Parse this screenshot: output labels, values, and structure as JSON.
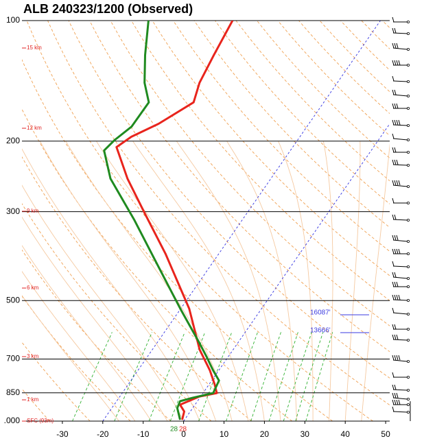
{
  "chart_data": {
    "type": "skew-t",
    "title": "ALB   240323/1200  (Observed)",
    "yscale": "log",
    "ylim": [
      1000,
      100
    ],
    "yticks": [
      100,
      200,
      300,
      500,
      700,
      850,
      {
        "value": 1000,
        "label": ".000"
      }
    ],
    "xlim": [
      -40,
      51
    ],
    "xticks": [
      -30,
      -20,
      -10,
      0,
      10,
      20,
      30,
      40,
      50
    ],
    "series": [
      {
        "color": "#e8241c",
        "x": [
          -0.6,
          -1.5,
          -3.7,
          -0.3,
          3.4,
          1.3,
          -2.2,
          -8.3,
          -17.9,
          -33.2,
          -45.4,
          -55.5,
          -63.6,
          -61.7,
          -57.2,
          -52.2,
          -54.1,
          -55.3,
          -56.6
        ],
        "values": [
          992,
          946,
          910,
          868,
          851,
          808,
          747,
          663,
          524,
          382,
          302,
          248,
          207,
          195,
          181,
          160,
          143,
          122,
          100
        ]
      },
      {
        "color": "#1f8a1f",
        "x": [
          -1.1,
          -3.8,
          -4.3,
          -1.8,
          2.5,
          1.8,
          -1.4,
          -5.4,
          -9.5,
          -20.1,
          -34.6,
          -46.8,
          -59.7,
          -66.1,
          -65.3,
          -63.4,
          -63.3,
          -67.7,
          -72.3,
          -77.4
        ],
        "values": [
          992,
          928,
          892,
          875,
          851,
          792,
          747,
          690,
          638,
          524,
          397,
          314,
          248,
          211,
          199,
          184,
          160,
          143,
          122,
          100
        ]
      }
    ],
    "height_labels": [
      "15 km",
      "12 km",
      "9 km",
      "6 km",
      "3 km",
      "1 km",
      "SFC (93m)"
    ],
    "annotations": [
      {
        "text": "16087'",
        "color": "#3a3ae0"
      },
      {
        "text": "13666'",
        "color": "#3a3ae0"
      }
    ],
    "surface_labels": [
      {
        "text": "28",
        "color": "#1f8a1f"
      },
      {
        "text": "28",
        "color": "#e8241c"
      }
    ]
  }
}
